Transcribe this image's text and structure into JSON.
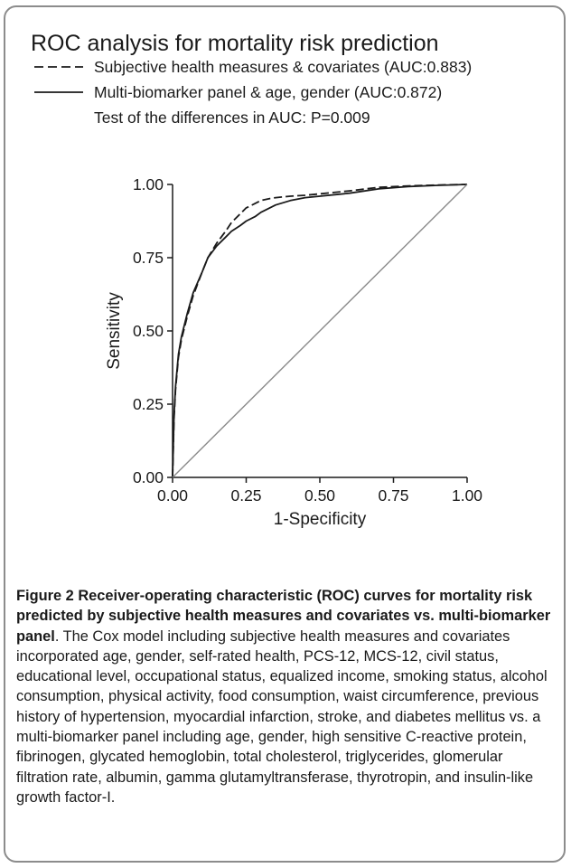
{
  "chart_data": {
    "type": "line",
    "title": "ROC analysis for mortality risk prediction",
    "legend": {
      "placement": "top-left",
      "entries": [
        {
          "label": "Subjective health measures & covariates (AUC:0.883)",
          "style": "dashed"
        },
        {
          "label": "Multi-biomarker panel & age, gender (AUC:0.872)",
          "style": "solid"
        }
      ],
      "note": "Test of the differences in AUC: P=0.009"
    },
    "xlabel": "1-Specificity",
    "ylabel": "Sensitivity",
    "xlim": [
      0,
      1
    ],
    "ylim": [
      0,
      1
    ],
    "xticks": [
      "0.00",
      "0.25",
      "0.50",
      "0.75",
      "1.00"
    ],
    "yticks": [
      "0.00",
      "0.25",
      "0.50",
      "0.75",
      "1.00"
    ],
    "grid": false,
    "series": [
      {
        "name": "Subjective health measures & covariates (AUC:0.883)",
        "style": "dashed",
        "color": "#1a1a1a",
        "x": [
          0,
          0.005,
          0.01,
          0.02,
          0.03,
          0.05,
          0.07,
          0.1,
          0.12,
          0.15,
          0.18,
          0.2,
          0.23,
          0.25,
          0.28,
          0.3,
          0.33,
          0.35,
          0.4,
          0.45,
          0.5,
          0.6,
          0.7,
          0.8,
          0.9,
          1.0
        ],
        "y": [
          0,
          0.2,
          0.3,
          0.41,
          0.47,
          0.55,
          0.62,
          0.7,
          0.75,
          0.8,
          0.84,
          0.87,
          0.9,
          0.92,
          0.935,
          0.945,
          0.952,
          0.955,
          0.96,
          0.963,
          0.968,
          0.978,
          0.99,
          0.995,
          0.998,
          1.0
        ]
      },
      {
        "name": "Multi-biomarker panel & age, gender (AUC:0.872)",
        "style": "solid",
        "color": "#1a1a1a",
        "x": [
          0,
          0.005,
          0.01,
          0.02,
          0.03,
          0.05,
          0.07,
          0.1,
          0.12,
          0.15,
          0.18,
          0.2,
          0.23,
          0.25,
          0.28,
          0.3,
          0.33,
          0.35,
          0.4,
          0.45,
          0.5,
          0.6,
          0.7,
          0.8,
          0.9,
          1.0
        ],
        "y": [
          0,
          0.21,
          0.31,
          0.42,
          0.48,
          0.56,
          0.63,
          0.7,
          0.75,
          0.79,
          0.82,
          0.84,
          0.86,
          0.875,
          0.89,
          0.905,
          0.92,
          0.93,
          0.945,
          0.955,
          0.96,
          0.97,
          0.985,
          0.993,
          0.997,
          1.0
        ]
      },
      {
        "name": "",
        "style": "reference",
        "color": "#8a8a8a",
        "x": [
          0,
          1
        ],
        "y": [
          0,
          1
        ]
      }
    ]
  },
  "caption": {
    "label": "Figure 2",
    "title": "Receiver-operating characteristic (ROC) curves for mortality risk predicted by subjective health measures and covariates vs. multi-biomarker panel",
    "body": ". The Cox model including subjective health measures and covariates incorporated age, gender, self-rated health, PCS-12, MCS-12, civil status, educational level, occupational status, equalized income, smoking status, alcohol consumption, physical activity, food consumption, waist circumference, previous history of hypertension, myocardial infarction, stroke, and diabetes mellitus vs. a multi-biomarker panel including age, gender, high sensitive C-reactive protein, fibrinogen, glycated hemoglobin, total cholesterol, triglycerides, glomerular filtration rate, albumin, gamma glutamyltransferase, thyrotropin, and insulin-like growth factor-I."
  }
}
